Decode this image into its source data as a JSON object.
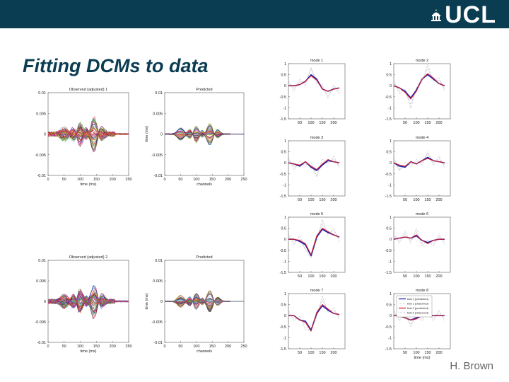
{
  "slide": {
    "title": "Fitting DCMs to data",
    "logo_text": "UCL",
    "author": "H. Brown",
    "colors": {
      "banner": "#0b3d52",
      "title": "#0b3d52",
      "author": "#666666"
    }
  },
  "chart_data": [
    {
      "id": "obs1",
      "type": "line",
      "title": "Observed (adjusted) 1",
      "xlabel": "time (ms)",
      "ylabel": "",
      "xlim": [
        0,
        250
      ],
      "ylim": [
        -0.01,
        0.01
      ],
      "xticks": [
        0,
        50,
        100,
        150,
        200,
        250
      ],
      "ytick_labels": [
        "0.01",
        "0.005",
        "0",
        "-0.005",
        "-0.01"
      ],
      "series_note": "many overlapping multicoloured channel traces"
    },
    {
      "id": "pred1",
      "type": "line",
      "title": "Predicted",
      "xlabel": "channels",
      "ylabel": "time (ms)",
      "xlim": [
        0,
        250
      ],
      "ylim": [
        -0.01,
        0.01
      ],
      "xticks": [
        0,
        50,
        100,
        150,
        200,
        250
      ],
      "ytick_labels": [
        "0.01",
        "0.005",
        "0",
        "-0.005",
        "-0.01"
      ],
      "series_note": "many overlapping multicoloured channel traces"
    },
    {
      "id": "obs2",
      "type": "line",
      "title": "Observed (adjusted) 2",
      "xlabel": "time (ms)",
      "ylabel": "",
      "xlim": [
        0,
        250
      ],
      "ylim": [
        -0.01,
        0.01
      ],
      "xticks": [
        0,
        50,
        100,
        150,
        200,
        250
      ],
      "ytick_labels": [
        "0.01",
        "0.005",
        "0",
        "-0.005",
        "-0.01"
      ],
      "series_note": "many overlapping multicoloured channel traces"
    },
    {
      "id": "pred2",
      "type": "line",
      "title": "Predicted",
      "xlabel": "channels",
      "ylabel": "time (ms)",
      "xlim": [
        0,
        250
      ],
      "ylim": [
        -0.01,
        0.01
      ],
      "xticks": [
        0,
        50,
        100,
        150,
        200,
        250
      ],
      "ytick_labels": [
        "0.01",
        "0.005",
        "0",
        "-0.005",
        "-0.01"
      ],
      "series_note": "many overlapping multicoloured channel traces"
    },
    {
      "id": "mode1",
      "type": "line",
      "title": "mode 1",
      "xlabel": "",
      "ylabel": "",
      "xlim": [
        0,
        250
      ],
      "ylim": [
        -1.5,
        1.0
      ],
      "xticks": [
        50,
        100,
        150,
        200
      ],
      "yticks": [
        1,
        0.5,
        0,
        -0.5,
        -1,
        -1.5
      ],
      "x": [
        0,
        25,
        50,
        75,
        100,
        125,
        150,
        175,
        200,
        225
      ],
      "series": [
        {
          "name": "trial 1 (predicted)",
          "color": "#1f1fb4",
          "values": [
            0.0,
            0.0,
            0.05,
            0.2,
            0.5,
            0.3,
            -0.15,
            -0.25,
            -0.15,
            -0.1
          ]
        },
        {
          "name": "trial 2 (predicted)",
          "color": "#d21f2d",
          "values": [
            0.0,
            0.0,
            0.05,
            0.2,
            0.45,
            0.25,
            -0.15,
            -0.25,
            -0.15,
            -0.1
          ]
        }
      ]
    },
    {
      "id": "mode2",
      "type": "line",
      "title": "mode 2",
      "xlabel": "",
      "ylabel": "",
      "xlim": [
        0,
        250
      ],
      "ylim": [
        -1.5,
        1.0
      ],
      "xticks": [
        50,
        100,
        150,
        200
      ],
      "yticks": [
        1,
        0.5,
        0,
        -0.5,
        -1,
        -1.5
      ],
      "x": [
        0,
        25,
        50,
        75,
        100,
        125,
        150,
        175,
        200,
        225
      ],
      "series": [
        {
          "name": "trial 1 (predicted)",
          "color": "#1f1fb4",
          "values": [
            0.0,
            -0.1,
            -0.25,
            -0.55,
            -0.2,
            0.3,
            0.5,
            0.3,
            0.1,
            0.0
          ]
        },
        {
          "name": "trial 2 (predicted)",
          "color": "#d21f2d",
          "values": [
            0.0,
            -0.1,
            -0.3,
            -0.6,
            -0.25,
            0.3,
            0.55,
            0.35,
            0.1,
            0.0
          ]
        }
      ]
    },
    {
      "id": "mode3",
      "type": "line",
      "title": "mode 3",
      "xlabel": "",
      "ylabel": "",
      "xlim": [
        0,
        250
      ],
      "ylim": [
        -1.5,
        1.0
      ],
      "xticks": [
        50,
        100,
        150,
        200
      ],
      "yticks": [
        1,
        0.5,
        0,
        -0.5,
        -1,
        -1.5
      ],
      "x": [
        0,
        25,
        50,
        75,
        100,
        125,
        150,
        175,
        200,
        225
      ],
      "series": [
        {
          "name": "trial 1 (predicted)",
          "color": "#1f1fb4",
          "values": [
            0.0,
            -0.05,
            -0.15,
            0.05,
            -0.2,
            -0.35,
            -0.1,
            0.1,
            0.05,
            0.0
          ]
        },
        {
          "name": "trial 2 (predicted)",
          "color": "#d21f2d",
          "values": [
            0.0,
            -0.05,
            -0.1,
            0.05,
            -0.15,
            -0.3,
            -0.05,
            0.15,
            0.05,
            0.0
          ]
        }
      ]
    },
    {
      "id": "mode4",
      "type": "line",
      "title": "mode 4",
      "xlabel": "",
      "ylabel": "",
      "xlim": [
        0,
        250
      ],
      "ylim": [
        -1.5,
        1.0
      ],
      "xticks": [
        50,
        100,
        150,
        200
      ],
      "yticks": [
        1,
        0.5,
        0,
        -0.5,
        -1,
        -1.5
      ],
      "x": [
        0,
        25,
        50,
        75,
        100,
        125,
        150,
        175,
        200,
        225
      ],
      "series": [
        {
          "name": "trial 1 (predicted)",
          "color": "#1f1fb4",
          "values": [
            0.0,
            -0.15,
            -0.2,
            0.05,
            -0.05,
            0.1,
            0.25,
            0.1,
            0.05,
            0.0
          ]
        },
        {
          "name": "trial 2 (predicted)",
          "color": "#d21f2d",
          "values": [
            0.0,
            -0.1,
            -0.15,
            0.05,
            -0.05,
            0.1,
            0.2,
            0.1,
            0.05,
            0.0
          ]
        }
      ]
    },
    {
      "id": "mode5",
      "type": "line",
      "title": "mode 5",
      "xlabel": "",
      "ylabel": "",
      "xlim": [
        0,
        250
      ],
      "ylim": [
        -1.5,
        1.0
      ],
      "xticks": [
        50,
        100,
        150,
        200
      ],
      "yticks": [
        1,
        0.5,
        0,
        -0.5,
        -1,
        -1.5
      ],
      "x": [
        0,
        25,
        50,
        75,
        100,
        125,
        150,
        175,
        200,
        225
      ],
      "series": [
        {
          "name": "trial 1 (predicted)",
          "color": "#1f1fb4",
          "values": [
            0.0,
            0.0,
            -0.1,
            -0.25,
            -0.75,
            0.1,
            0.45,
            0.3,
            0.2,
            0.1
          ]
        },
        {
          "name": "trial 2 (predicted)",
          "color": "#d21f2d",
          "values": [
            0.0,
            0.0,
            -0.05,
            -0.2,
            -0.7,
            0.15,
            0.5,
            0.35,
            0.2,
            0.1
          ]
        }
      ]
    },
    {
      "id": "mode6",
      "type": "line",
      "title": "mode 6",
      "xlabel": "",
      "ylabel": "",
      "xlim": [
        0,
        250
      ],
      "ylim": [
        -1.5,
        1.0
      ],
      "xticks": [
        50,
        100,
        150,
        200
      ],
      "yticks": [
        1,
        0.5,
        0,
        -0.5,
        -1,
        -1.5
      ],
      "x": [
        0,
        25,
        50,
        75,
        100,
        125,
        150,
        175,
        200,
        225
      ],
      "series": [
        {
          "name": "trial 1 (predicted)",
          "color": "#1f1fb4",
          "values": [
            0.0,
            0.05,
            0.1,
            0.05,
            0.15,
            -0.05,
            -0.15,
            -0.05,
            0.0,
            0.0
          ]
        },
        {
          "name": "trial 2 (predicted)",
          "color": "#d21f2d",
          "values": [
            0.0,
            0.05,
            0.1,
            0.05,
            0.2,
            -0.05,
            -0.2,
            -0.05,
            0.0,
            0.0
          ]
        }
      ]
    },
    {
      "id": "mode7",
      "type": "line",
      "title": "mode 7",
      "xlabel": "",
      "ylabel": "",
      "xlim": [
        0,
        250
      ],
      "ylim": [
        -1.5,
        1.0
      ],
      "xticks": [
        50,
        100,
        150,
        200
      ],
      "yticks": [
        1,
        0.5,
        0,
        -0.5,
        -1,
        -1.5
      ],
      "x": [
        0,
        25,
        50,
        75,
        100,
        125,
        150,
        175,
        200,
        225
      ],
      "series": [
        {
          "name": "trial 1 (predicted)",
          "color": "#1f1fb4",
          "values": [
            0.0,
            0.0,
            -0.2,
            -0.25,
            -0.65,
            0.1,
            0.45,
            0.25,
            0.1,
            0.05
          ]
        },
        {
          "name": "trial 2 (predicted)",
          "color": "#d21f2d",
          "values": [
            0.0,
            0.0,
            -0.2,
            -0.3,
            -0.7,
            0.15,
            0.5,
            0.3,
            0.1,
            0.05
          ]
        }
      ]
    },
    {
      "id": "mode8",
      "type": "line",
      "title": "mode 8",
      "xlabel": "time (ms)",
      "ylabel": "",
      "xlim": [
        0,
        250
      ],
      "ylim": [
        -1.5,
        1.0
      ],
      "xticks": [
        50,
        100,
        150,
        200
      ],
      "yticks": [
        1,
        0.5,
        0,
        -0.5,
        -1,
        -1.5
      ],
      "x": [
        0,
        25,
        50,
        75,
        100,
        125,
        150,
        175,
        200,
        225
      ],
      "series": [
        {
          "name": "trial 1 (predicted)",
          "color": "#1f1fb4",
          "values": [
            0.0,
            0.0,
            -0.1,
            -0.2,
            -0.1,
            0.0,
            0.0,
            0.0,
            0.0,
            0.0
          ]
        },
        {
          "name": "trial 2 (predicted)",
          "color": "#d21f2d",
          "values": [
            0.0,
            0.0,
            -0.1,
            -0.2,
            -0.15,
            0.0,
            0.0,
            0.0,
            0.0,
            0.0
          ]
        }
      ],
      "legend": {
        "placement": "top-right",
        "entries": [
          {
            "label": "trial 1 (predicted)",
            "color": "#1f1fb4",
            "style": "solid"
          },
          {
            "label": "trial 1 (observed)",
            "color": "#8a8a9a",
            "style": "dotted"
          },
          {
            "label": "trial 2 (predicted)",
            "color": "#d21f2d",
            "style": "solid"
          },
          {
            "label": "trial 2 (observed)",
            "color": "#8a8a9a",
            "style": "dotted"
          }
        ]
      }
    }
  ]
}
